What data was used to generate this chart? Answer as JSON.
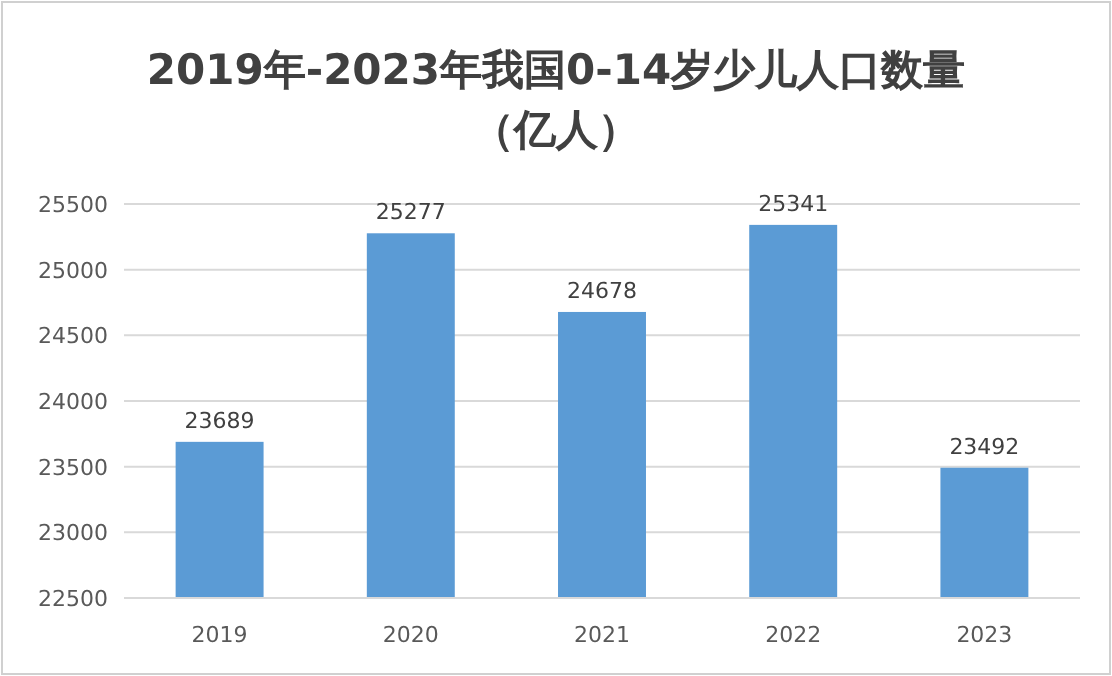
{
  "chart_data": {
    "type": "bar",
    "title": "2019年-2023年我国0-14岁少儿人口数量（亿人）",
    "categories": [
      "2019",
      "2020",
      "2021",
      "2022",
      "2023"
    ],
    "values": [
      23689,
      25277,
      24678,
      25341,
      23492
    ],
    "color": "#5b9bd5",
    "ylim": [
      22500,
      25500
    ],
    "yticks": [
      22500,
      23000,
      23500,
      24000,
      24500,
      25000,
      25500
    ],
    "grid": "y",
    "data_labels": true
  }
}
